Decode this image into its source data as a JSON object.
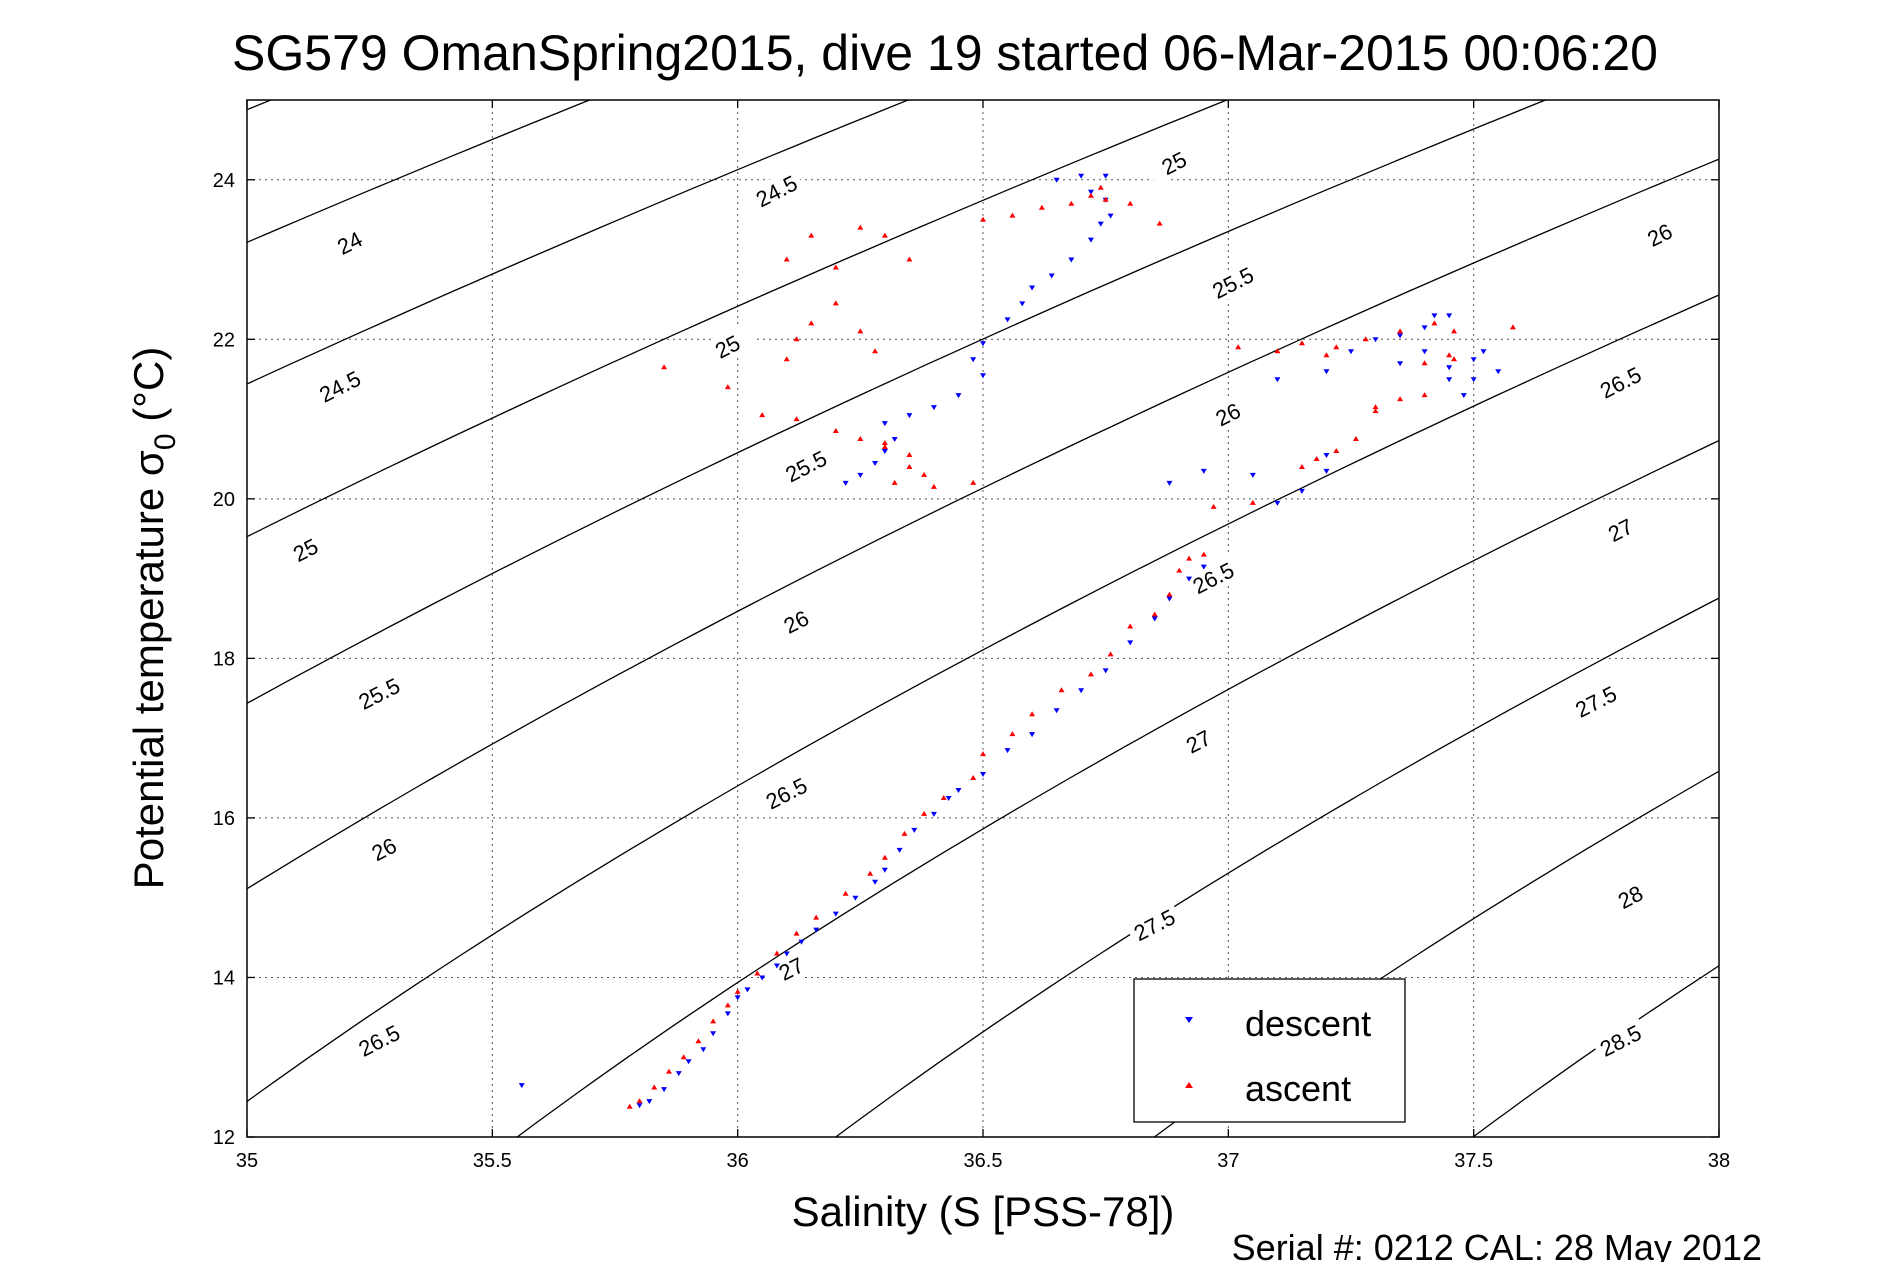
{
  "chart_data": {
    "type": "scatter",
    "title": "SG579 OmanSpring2015, dive 19 started 06-Mar-2015 00:06:20",
    "xlabel": "Salinity (S [PSS-78])",
    "ylabel": "Potential temperature σ",
    "ylabel_subscript": "0",
    "ylabel_unit": " (°C)",
    "footer": "Serial #: 0212  CAL: 28 May 2012",
    "xlim": [
      35,
      38
    ],
    "ylim": [
      12,
      25
    ],
    "xticks": [
      35,
      35.5,
      36,
      36.5,
      37,
      37.5,
      38
    ],
    "xtick_labels": [
      "35",
      "35.5",
      "36",
      "36.5",
      "37",
      "37.5",
      "38"
    ],
    "yticks": [
      12,
      14,
      16,
      18,
      20,
      22,
      24
    ],
    "ytick_labels": [
      "12",
      "14",
      "16",
      "18",
      "20",
      "22",
      "24"
    ],
    "grid": true,
    "legend_placement": "bottom-right",
    "contour_levels": [
      23.5,
      24,
      24.5,
      25,
      25.5,
      26,
      26.5,
      27,
      27.5,
      28,
      28.5
    ],
    "contour_labels": [
      {
        "text": "24",
        "s": 35.21,
        "t": 23.2
      },
      {
        "text": "24.5",
        "s": 35.19,
        "t": 21.4
      },
      {
        "text": "25",
        "s": 35.12,
        "t": 19.35
      },
      {
        "text": "25.5",
        "s": 35.27,
        "t": 17.55
      },
      {
        "text": "26",
        "s": 35.28,
        "t": 15.6
      },
      {
        "text": "26.5",
        "s": 35.27,
        "t": 13.2
      },
      {
        "text": "24.5",
        "s": 36.08,
        "t": 23.85
      },
      {
        "text": "25",
        "s": 35.98,
        "t": 21.9
      },
      {
        "text": "25.5",
        "s": 36.14,
        "t": 20.4
      },
      {
        "text": "26",
        "s": 36.12,
        "t": 18.45
      },
      {
        "text": "26.5",
        "s": 36.1,
        "t": 16.3
      },
      {
        "text": "27",
        "s": 36.11,
        "t": 14.1
      },
      {
        "text": "25",
        "s": 36.89,
        "t": 24.2
      },
      {
        "text": "25.5",
        "s": 37.01,
        "t": 22.7
      },
      {
        "text": "26",
        "s": 37.0,
        "t": 21.05
      },
      {
        "text": "26.5",
        "s": 36.97,
        "t": 19.0
      },
      {
        "text": "27",
        "s": 36.94,
        "t": 16.95
      },
      {
        "text": "27.5",
        "s": 36.85,
        "t": 14.65
      },
      {
        "text": "26",
        "s": 37.88,
        "t": 23.3
      },
      {
        "text": "26.5",
        "s": 37.8,
        "t": 21.45
      },
      {
        "text": "27",
        "s": 37.8,
        "t": 19.6
      },
      {
        "text": "27.5",
        "s": 37.75,
        "t": 17.45
      },
      {
        "text": "28",
        "s": 37.82,
        "t": 15.0
      },
      {
        "text": "28.5",
        "s": 37.8,
        "t": 13.2
      }
    ],
    "series": [
      {
        "name": "descent",
        "color": "#0000ff",
        "marker": "triangle-down",
        "points": [
          [
            35.56,
            12.65
          ],
          [
            35.8,
            12.4
          ],
          [
            35.82,
            12.45
          ],
          [
            35.85,
            12.6
          ],
          [
            35.88,
            12.8
          ],
          [
            35.9,
            12.95
          ],
          [
            35.93,
            13.1
          ],
          [
            35.95,
            13.3
          ],
          [
            35.98,
            13.55
          ],
          [
            36.0,
            13.75
          ],
          [
            36.02,
            13.85
          ],
          [
            36.05,
            14.0
          ],
          [
            36.08,
            14.15
          ],
          [
            36.1,
            14.3
          ],
          [
            36.13,
            14.45
          ],
          [
            36.16,
            14.6
          ],
          [
            36.2,
            14.8
          ],
          [
            36.24,
            15.0
          ],
          [
            36.28,
            15.2
          ],
          [
            36.3,
            15.35
          ],
          [
            36.33,
            15.6
          ],
          [
            36.36,
            15.85
          ],
          [
            36.4,
            16.05
          ],
          [
            36.43,
            16.25
          ],
          [
            36.45,
            16.35
          ],
          [
            36.5,
            16.55
          ],
          [
            36.55,
            16.85
          ],
          [
            36.6,
            17.05
          ],
          [
            36.65,
            17.35
          ],
          [
            36.7,
            17.6
          ],
          [
            36.75,
            17.85
          ],
          [
            36.8,
            18.2
          ],
          [
            36.85,
            18.5
          ],
          [
            36.88,
            18.75
          ],
          [
            36.92,
            19.0
          ],
          [
            36.95,
            19.15
          ],
          [
            36.22,
            20.2
          ],
          [
            36.25,
            20.3
          ],
          [
            36.28,
            20.45
          ],
          [
            36.3,
            20.6
          ],
          [
            36.32,
            20.75
          ],
          [
            36.3,
            20.95
          ],
          [
            36.35,
            21.05
          ],
          [
            36.4,
            21.15
          ],
          [
            36.45,
            21.3
          ],
          [
            36.5,
            21.55
          ],
          [
            36.48,
            21.75
          ],
          [
            36.5,
            21.95
          ],
          [
            36.55,
            22.25
          ],
          [
            36.58,
            22.45
          ],
          [
            36.6,
            22.65
          ],
          [
            36.64,
            22.8
          ],
          [
            36.68,
            23.0
          ],
          [
            36.72,
            23.25
          ],
          [
            36.74,
            23.45
          ],
          [
            36.76,
            23.55
          ],
          [
            36.75,
            23.75
          ],
          [
            36.72,
            23.85
          ],
          [
            36.65,
            24.0
          ],
          [
            36.7,
            24.05
          ],
          [
            36.75,
            24.05
          ],
          [
            36.88,
            20.2
          ],
          [
            36.95,
            20.35
          ],
          [
            37.05,
            20.3
          ],
          [
            37.1,
            19.95
          ],
          [
            37.15,
            20.1
          ],
          [
            37.2,
            20.35
          ],
          [
            37.1,
            21.5
          ],
          [
            37.2,
            21.6
          ],
          [
            37.25,
            21.85
          ],
          [
            37.3,
            22.0
          ],
          [
            37.35,
            22.05
          ],
          [
            37.4,
            22.15
          ],
          [
            37.42,
            22.3
          ],
          [
            37.45,
            22.3
          ],
          [
            37.4,
            21.85
          ],
          [
            37.45,
            21.65
          ],
          [
            37.5,
            21.75
          ],
          [
            37.52,
            21.85
          ],
          [
            37.5,
            21.5
          ],
          [
            37.48,
            21.3
          ],
          [
            37.55,
            21.6
          ],
          [
            37.45,
            21.5
          ],
          [
            37.35,
            21.7
          ],
          [
            37.2,
            20.55
          ]
        ]
      },
      {
        "name": "ascent",
        "color": "#ff0000",
        "marker": "triangle-up",
        "points": [
          [
            35.78,
            12.38
          ],
          [
            35.8,
            12.45
          ],
          [
            35.83,
            12.62
          ],
          [
            35.86,
            12.82
          ],
          [
            35.89,
            13.0
          ],
          [
            35.92,
            13.2
          ],
          [
            35.95,
            13.45
          ],
          [
            35.98,
            13.65
          ],
          [
            36.0,
            13.82
          ],
          [
            36.04,
            14.05
          ],
          [
            36.08,
            14.3
          ],
          [
            36.12,
            14.55
          ],
          [
            36.16,
            14.75
          ],
          [
            36.22,
            15.05
          ],
          [
            36.27,
            15.3
          ],
          [
            36.3,
            15.5
          ],
          [
            36.34,
            15.8
          ],
          [
            36.38,
            16.05
          ],
          [
            36.42,
            16.25
          ],
          [
            36.48,
            16.5
          ],
          [
            36.5,
            16.8
          ],
          [
            36.56,
            17.05
          ],
          [
            36.6,
            17.3
          ],
          [
            36.66,
            17.6
          ],
          [
            36.72,
            17.8
          ],
          [
            36.76,
            18.05
          ],
          [
            36.8,
            18.4
          ],
          [
            36.85,
            18.55
          ],
          [
            36.88,
            18.8
          ],
          [
            36.9,
            19.1
          ],
          [
            36.92,
            19.25
          ],
          [
            36.95,
            19.3
          ],
          [
            36.1,
            21.75
          ],
          [
            36.12,
            22.0
          ],
          [
            36.15,
            22.2
          ],
          [
            36.2,
            22.45
          ],
          [
            36.25,
            22.1
          ],
          [
            36.28,
            21.85
          ],
          [
            36.2,
            22.9
          ],
          [
            36.15,
            23.3
          ],
          [
            36.25,
            23.4
          ],
          [
            36.3,
            23.3
          ],
          [
            36.35,
            23.0
          ],
          [
            36.1,
            23.0
          ],
          [
            36.05,
            21.05
          ],
          [
            36.12,
            21.0
          ],
          [
            36.2,
            20.85
          ],
          [
            36.25,
            20.75
          ],
          [
            36.3,
            20.65
          ],
          [
            36.35,
            20.55
          ],
          [
            36.38,
            20.3
          ],
          [
            36.32,
            20.2
          ],
          [
            36.4,
            20.15
          ],
          [
            36.48,
            20.2
          ],
          [
            36.3,
            20.7
          ],
          [
            36.35,
            20.4
          ],
          [
            35.85,
            21.65
          ],
          [
            35.98,
            21.4
          ],
          [
            36.5,
            23.5
          ],
          [
            36.56,
            23.55
          ],
          [
            36.62,
            23.65
          ],
          [
            36.68,
            23.7
          ],
          [
            36.72,
            23.8
          ],
          [
            36.75,
            23.75
          ],
          [
            36.8,
            23.7
          ],
          [
            36.86,
            23.45
          ],
          [
            36.74,
            23.9
          ],
          [
            36.97,
            19.9
          ],
          [
            37.05,
            19.95
          ],
          [
            37.02,
            21.9
          ],
          [
            37.1,
            21.85
          ],
          [
            37.15,
            21.95
          ],
          [
            37.2,
            21.8
          ],
          [
            37.22,
            21.9
          ],
          [
            37.28,
            22.0
          ],
          [
            37.35,
            22.1
          ],
          [
            37.42,
            22.2
          ],
          [
            37.46,
            22.1
          ],
          [
            37.58,
            22.15
          ],
          [
            37.3,
            21.15
          ],
          [
            37.35,
            21.25
          ],
          [
            37.4,
            21.3
          ],
          [
            37.45,
            21.8
          ],
          [
            37.4,
            21.7
          ],
          [
            37.46,
            21.75
          ],
          [
            37.15,
            20.4
          ],
          [
            37.18,
            20.5
          ],
          [
            37.22,
            20.6
          ],
          [
            37.26,
            20.75
          ],
          [
            37.3,
            21.1
          ]
        ]
      }
    ]
  }
}
